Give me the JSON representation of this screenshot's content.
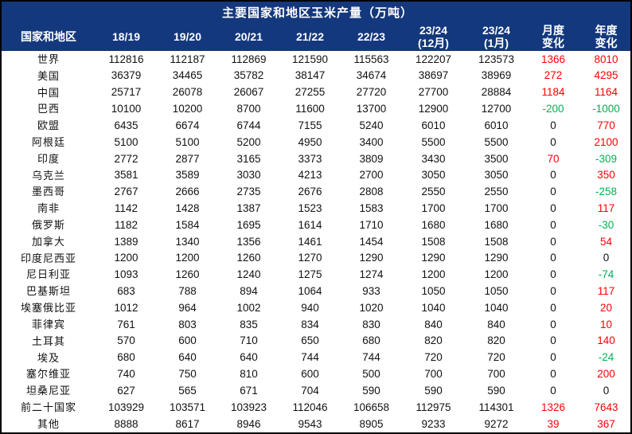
{
  "chart_data": {
    "type": "table",
    "title": "主要国家和地区玉米产量（万吨）",
    "columns": [
      {
        "line1": "国家和地区"
      },
      {
        "line1": "18/19"
      },
      {
        "line1": "19/20"
      },
      {
        "line1": "20/21"
      },
      {
        "line1": "21/22"
      },
      {
        "line1": "22/23"
      },
      {
        "line1": "23/24",
        "line2": "(12月)"
      },
      {
        "line1": "23/24",
        "line2": "(1月)"
      },
      {
        "line1": "月度",
        "line2": "变化"
      },
      {
        "line1": "年度",
        "line2": "变化"
      }
    ],
    "rows": [
      {
        "name": "世界",
        "values": [
          112816,
          112187,
          112869,
          121590,
          115563,
          122207,
          123573
        ],
        "monthly_change": 1366,
        "yearly_change": 8010
      },
      {
        "name": "美国",
        "values": [
          36379,
          34465,
          35782,
          38147,
          34674,
          38697,
          38969
        ],
        "monthly_change": 272,
        "yearly_change": 4295
      },
      {
        "name": "中国",
        "values": [
          25717,
          26078,
          26067,
          27255,
          27720,
          27700,
          28884
        ],
        "monthly_change": 1184,
        "yearly_change": 1164
      },
      {
        "name": "巴西",
        "values": [
          10100,
          10200,
          8700,
          11600,
          13700,
          12900,
          12700
        ],
        "monthly_change": -200,
        "yearly_change": -1000
      },
      {
        "name": "欧盟",
        "values": [
          6435,
          6674,
          6744,
          7155,
          5240,
          6010,
          6010
        ],
        "monthly_change": 0,
        "yearly_change": 770
      },
      {
        "name": "阿根廷",
        "values": [
          5100,
          5100,
          5200,
          4950,
          3400,
          5500,
          5500
        ],
        "monthly_change": 0,
        "yearly_change": 2100
      },
      {
        "name": "印度",
        "values": [
          2772,
          2877,
          3165,
          3373,
          3809,
          3430,
          3500
        ],
        "monthly_change": 70,
        "yearly_change": -309
      },
      {
        "name": "乌克兰",
        "values": [
          3581,
          3589,
          3030,
          4213,
          2700,
          3050,
          3050
        ],
        "monthly_change": 0,
        "yearly_change": 350
      },
      {
        "name": "墨西哥",
        "values": [
          2767,
          2666,
          2735,
          2676,
          2808,
          2550,
          2550
        ],
        "monthly_change": 0,
        "yearly_change": -258
      },
      {
        "name": "南非",
        "values": [
          1142,
          1428,
          1387,
          1523,
          1583,
          1700,
          1700
        ],
        "monthly_change": 0,
        "yearly_change": 117
      },
      {
        "name": "俄罗斯",
        "values": [
          1182,
          1584,
          1695,
          1614,
          1710,
          1680,
          1680
        ],
        "monthly_change": 0,
        "yearly_change": -30
      },
      {
        "name": "加拿大",
        "values": [
          1389,
          1340,
          1356,
          1461,
          1454,
          1508,
          1508
        ],
        "monthly_change": 0,
        "yearly_change": 54
      },
      {
        "name": "印度尼西亚",
        "values": [
          1200,
          1200,
          1260,
          1270,
          1290,
          1290,
          1290
        ],
        "monthly_change": 0,
        "yearly_change": 0
      },
      {
        "name": "尼日利亚",
        "values": [
          1093,
          1260,
          1240,
          1275,
          1274,
          1200,
          1200
        ],
        "monthly_change": 0,
        "yearly_change": -74
      },
      {
        "name": "巴基斯坦",
        "values": [
          683,
          788,
          894,
          1064,
          933,
          1050,
          1050
        ],
        "monthly_change": 0,
        "yearly_change": 117
      },
      {
        "name": "埃塞俄比亚",
        "values": [
          1012,
          964,
          1002,
          940,
          1020,
          1040,
          1040
        ],
        "monthly_change": 0,
        "yearly_change": 20
      },
      {
        "name": "菲律宾",
        "values": [
          761,
          803,
          835,
          834,
          830,
          840,
          840
        ],
        "monthly_change": 0,
        "yearly_change": 10
      },
      {
        "name": "土耳其",
        "values": [
          570,
          600,
          710,
          650,
          680,
          820,
          820
        ],
        "monthly_change": 0,
        "yearly_change": 140
      },
      {
        "name": "埃及",
        "values": [
          680,
          640,
          640,
          744,
          744,
          720,
          720
        ],
        "monthly_change": 0,
        "yearly_change": -24
      },
      {
        "name": "塞尔维亚",
        "values": [
          740,
          750,
          810,
          600,
          500,
          700,
          700
        ],
        "monthly_change": 0,
        "yearly_change": 200
      },
      {
        "name": "坦桑尼亚",
        "values": [
          627,
          565,
          671,
          704,
          590,
          590,
          590
        ],
        "monthly_change": 0,
        "yearly_change": 0
      },
      {
        "name": "前二十国家",
        "values": [
          103929,
          103571,
          103923,
          112046,
          106658,
          112975,
          114301
        ],
        "monthly_change": 1326,
        "yearly_change": 7643
      },
      {
        "name": "其他",
        "values": [
          8888,
          8617,
          8946,
          9543,
          8905,
          9233,
          9272
        ],
        "monthly_change": 39,
        "yearly_change": 367
      }
    ]
  },
  "colors": {
    "header_bg": "#14387d",
    "header_text": "#ffffff",
    "positive_change": "#fe0000",
    "negative_change": "#00b050",
    "neutral_change": "#111111",
    "body_bg": "#ffffff",
    "border": "#000000"
  }
}
